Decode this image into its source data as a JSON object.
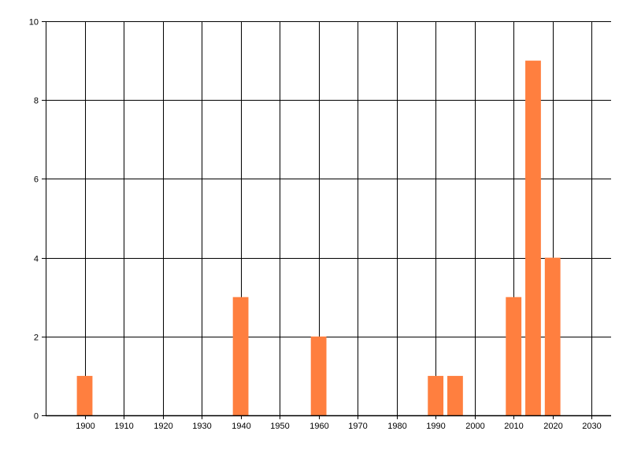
{
  "chart_data": {
    "type": "bar",
    "title": "",
    "xlabel": "",
    "ylabel": "",
    "x": [
      1900,
      1940,
      1960,
      1990,
      1995,
      2010,
      2015,
      2020
    ],
    "values": [
      1,
      3,
      2,
      1,
      1,
      3,
      9,
      4
    ],
    "bar_width_years": 4,
    "xlim": [
      1890,
      2035
    ],
    "ylim": [
      0,
      10
    ],
    "x_ticks": [
      1900,
      1910,
      1920,
      1930,
      1940,
      1950,
      1960,
      1970,
      1980,
      1990,
      2000,
      2010,
      2020,
      2030
    ],
    "y_ticks": [
      0,
      2,
      4,
      6,
      8,
      10
    ],
    "grid": true,
    "legend": "none",
    "colors": {
      "bar": "#FF7F3F",
      "grid": "#000000",
      "y_tick_label_top": "#8B0000"
    }
  }
}
